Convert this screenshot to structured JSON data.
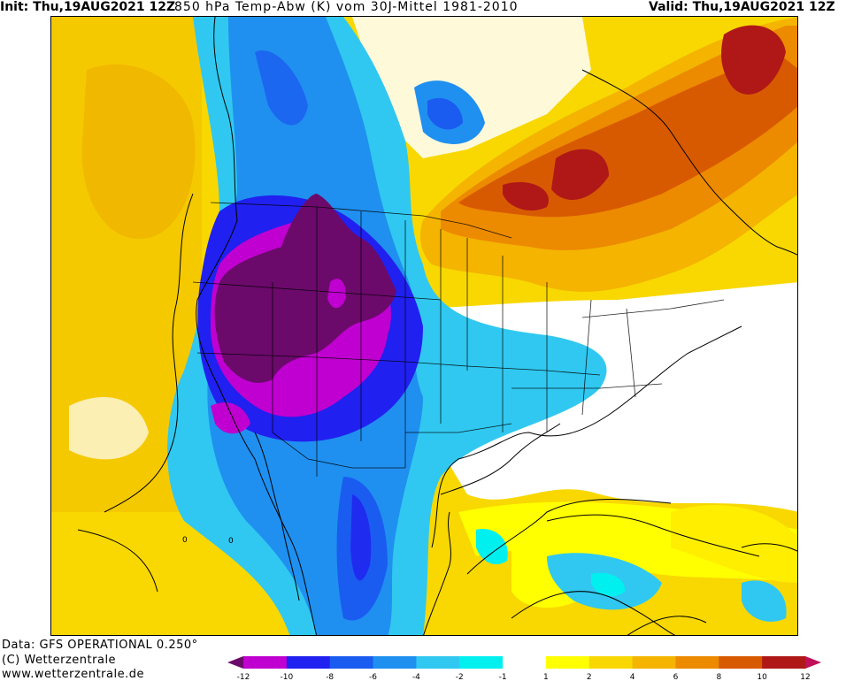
{
  "header": {
    "init": "Init: Thu,19AUG2021 12Z",
    "title": "850 hPa Temp-Abw (K) vom 30J-Mittel 1981-2010",
    "valid": "Valid: Thu,19AUG2021 12Z"
  },
  "footer": {
    "data_source": "Data: GFS OPERATIONAL 0.250°",
    "copyright": "(C) Wetterzentrale",
    "website": "www.wetterzentrale.de"
  },
  "map": {
    "region": "North America",
    "contour_label": "0"
  },
  "legend": {
    "ticks": [
      "-12",
      "-10",
      "-8",
      "-6",
      "-4",
      "-2",
      "-1",
      "1",
      "2",
      "4",
      "6",
      "8",
      "10",
      "12"
    ],
    "colors": [
      "#6b0a6b",
      "#c000d0",
      "#2020f0",
      "#1b5cf0",
      "#1f90f0",
      "#30c8f0",
      "#00f0f0",
      "#ffffff",
      "#ffff00",
      "#f8d800",
      "#f4b400",
      "#ec8a00",
      "#d85a00",
      "#b01818",
      "#c0105a"
    ]
  },
  "colors": {
    "ocean_neutral": "#f8d000",
    "anomaly_cold_core": "#6b0a6b",
    "anomaly_warm_core": "#b01818"
  }
}
